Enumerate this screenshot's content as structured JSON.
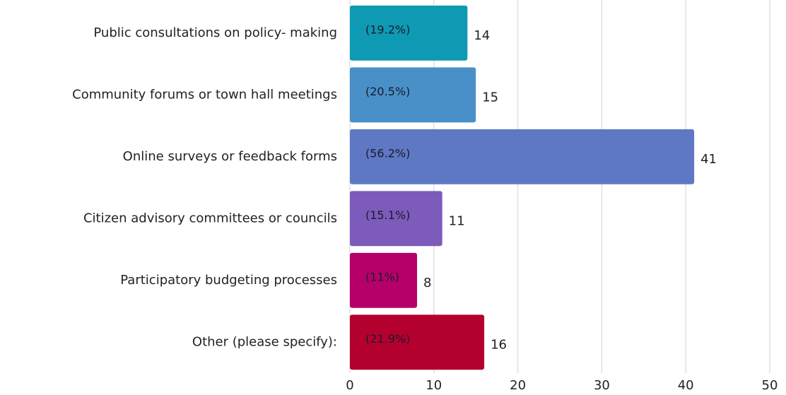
{
  "chart_data": {
    "type": "bar",
    "orientation": "horizontal",
    "categories": [
      "Public consultations on policy- making",
      "Community forums or town hall meetings",
      "Online surveys or feedback forms",
      "Citizen advisory committees or councils",
      "Participatory budgeting processes",
      "Other (please specify):"
    ],
    "values": [
      14,
      15,
      41,
      11,
      8,
      16
    ],
    "percent_labels": [
      "(19.2%)",
      "(20.5%)",
      "(56.2%)",
      "(15.1%)",
      "(11%)",
      "(21.9%)"
    ],
    "colors": [
      "#0e9ab3",
      "#4a90c8",
      "#5f78c3",
      "#7c5bba",
      "#b5006a",
      "#b4002f"
    ],
    "xlim": [
      0,
      50
    ],
    "xticks": [
      0,
      10,
      20,
      30,
      40,
      50
    ],
    "grid": true
  }
}
